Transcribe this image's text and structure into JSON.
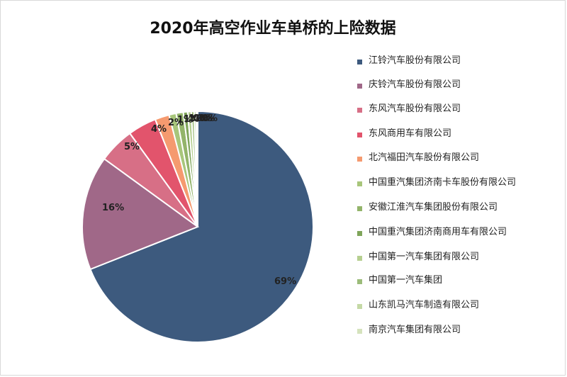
{
  "chart_data": {
    "type": "pie",
    "title": "2020年高空作业车单桥的上险数据",
    "legend_position": "right",
    "slices": [
      {
        "name": "江铃汽车股份有限公司",
        "value": 69,
        "label": "69%",
        "color": "#3d5a7e"
      },
      {
        "name": "庆铃汽车股份有限公司",
        "value": 16,
        "label": "16%",
        "color": "#a06888"
      },
      {
        "name": "东风汽车股份有限公司",
        "value": 5,
        "label": "5%",
        "color": "#d76f86"
      },
      {
        "name": "东风商用车有限公司",
        "value": 4,
        "label": "4%",
        "color": "#e2546c"
      },
      {
        "name": "北汽福田汽车股份有限公司",
        "value": 2,
        "label": "2%",
        "color": "#f59a6f"
      },
      {
        "name": "中国重汽集团济南卡车股份有限公司",
        "value": 1,
        "label": "1%",
        "color": "#a8c67b"
      },
      {
        "name": "安徽江淮汽车集团股份有限公司",
        "value": 1,
        "label": "1%",
        "color": "#93b46a"
      },
      {
        "name": "中国重汽集团济南商用车有限公司",
        "value": 0.6,
        "label": "1%",
        "color": "#7fa55a"
      },
      {
        "name": "中国第一汽车集团有限公司",
        "value": 0.5,
        "label": "0%",
        "color": "#b6cf90"
      },
      {
        "name": "中国第一汽车集团",
        "value": 0.4,
        "label": "0%",
        "color": "#9cbc7a"
      },
      {
        "name": "山东凯马汽车制造有限公司",
        "value": 0.3,
        "label": "0%",
        "color": "#c5d9a6"
      },
      {
        "name": "南京汽车集团有限公司",
        "value": 0.2,
        "label": "0%",
        "color": "#d5e3bd"
      }
    ]
  }
}
